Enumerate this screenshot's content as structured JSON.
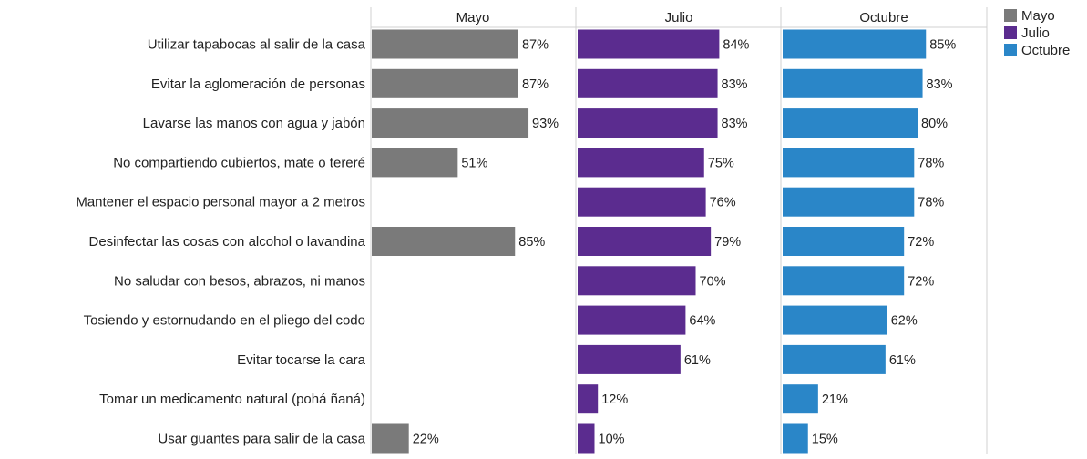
{
  "chart_data": {
    "type": "bar",
    "orientation": "horizontal",
    "layout": "small-multiples",
    "categories": [
      "Utilizar tapabocas al salir de la casa",
      "Evitar la aglomeración de personas",
      "Lavarse las manos con agua y jabón",
      "No compartiendo cubiertos, mate o tereré",
      "Mantener el espacio personal mayor a 2 metros",
      "Desinfectar las cosas con alcohol o lavandina",
      "No saludar con besos, abrazos, ni manos",
      "Tosiendo y estornudando en el pliego del codo",
      "Evitar tocarse la cara",
      "Tomar un medicamento natural (pohá ñaná)",
      "Usar guantes para salir de la casa"
    ],
    "series": [
      {
        "name": "Mayo",
        "color": "#7a7a7a",
        "values": [
          87,
          87,
          93,
          51,
          null,
          85,
          null,
          null,
          null,
          null,
          22
        ],
        "labels": [
          "87%",
          "87%",
          "93%",
          "51%",
          null,
          "85%",
          null,
          null,
          null,
          null,
          "22%"
        ]
      },
      {
        "name": "Julio",
        "color": "#5b2c8f",
        "values": [
          84,
          83,
          83,
          75,
          76,
          79,
          70,
          64,
          61,
          12,
          10
        ],
        "labels": [
          "84%",
          "83%",
          "83%",
          "75%",
          "76%",
          "79%",
          "70%",
          "64%",
          "61%",
          "12%",
          "10%"
        ]
      },
      {
        "name": "Octubre",
        "color": "#2a86c8",
        "values": [
          85,
          83,
          80,
          78,
          78,
          72,
          72,
          62,
          61,
          21,
          15
        ],
        "labels": [
          "85%",
          "83%",
          "80%",
          "78%",
          "78%",
          "72%",
          "72%",
          "62%",
          "61%",
          "21%",
          "15%"
        ]
      }
    ],
    "xlim": [
      0,
      100
    ],
    "grid": false,
    "legend_position": "top-right"
  }
}
